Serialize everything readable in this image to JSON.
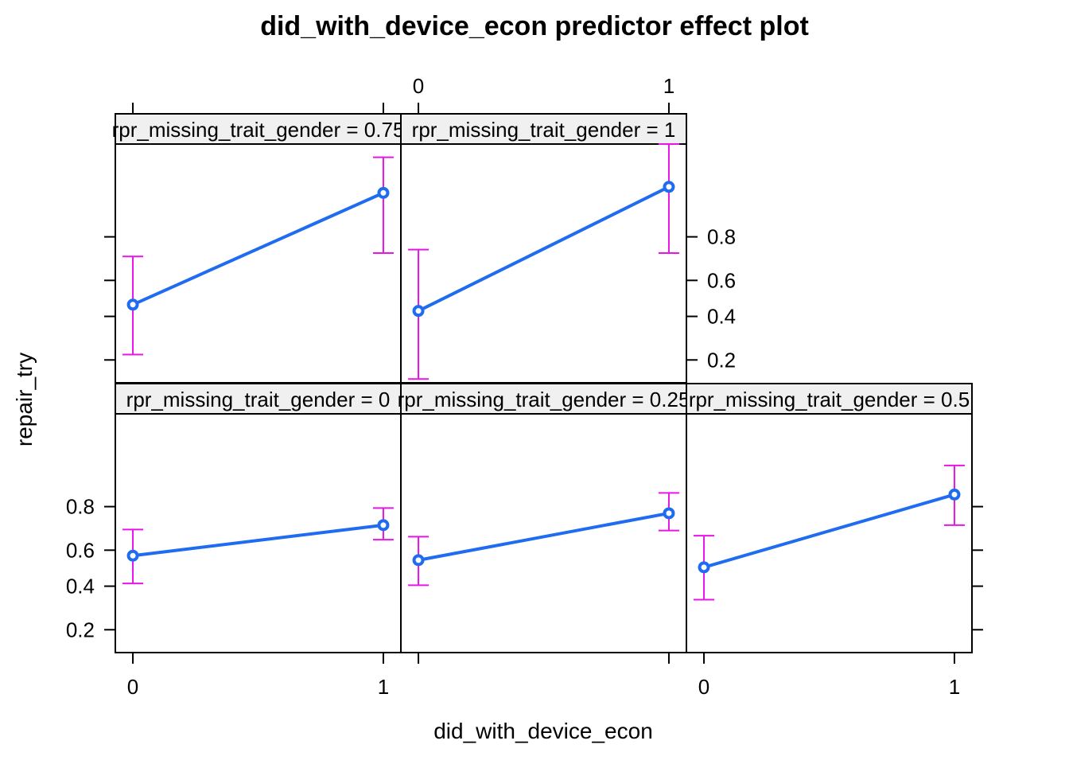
{
  "chart_data": {
    "type": "line",
    "title": "did_with_device_econ predictor effect plot",
    "xlabel": "did_with_device_econ",
    "ylabel": "repair_try",
    "x_ticks": [
      "0",
      "1"
    ],
    "y_ticks": [
      "0.2",
      "0.4",
      "0.6",
      "0.8"
    ],
    "y_tick_values": [
      0.2,
      0.4,
      0.6,
      0.8
    ],
    "xlim": [
      -0.07,
      1.07
    ],
    "ylim": [
      0.13,
      0.97
    ],
    "y_scale": "logit",
    "grid": false,
    "colors": {
      "line": "#1f6cf0",
      "ci": "#e815e8",
      "strip": "#f0f0f0"
    },
    "panels": [
      {
        "strip": "rpr_missing_trait_gender = 0",
        "row": 2,
        "col": 1,
        "x": [
          0,
          1
        ],
        "fit": [
          0.57,
          0.725
        ],
        "lower": [
          0.415,
          0.655
        ],
        "upper": [
          0.705,
          0.795
        ]
      },
      {
        "strip": "rpr_missing_trait_gender = 0.25",
        "row": 2,
        "col": 2,
        "x": [
          0,
          1
        ],
        "fit": [
          0.545,
          0.775
        ],
        "lower": [
          0.405,
          0.7
        ],
        "upper": [
          0.67,
          0.845
        ]
      },
      {
        "strip": "rpr_missing_trait_gender = 0.5",
        "row": 2,
        "col": 3,
        "x": [
          0,
          1
        ],
        "fit": [
          0.505,
          0.84
        ],
        "lower": [
          0.33,
          0.725
        ],
        "upper": [
          0.675,
          0.91
        ]
      },
      {
        "strip": "rpr_missing_trait_gender = 0.75",
        "row": 1,
        "col": 1,
        "x": [
          0,
          1
        ],
        "fit": [
          0.465,
          0.915
        ],
        "lower": [
          0.22,
          0.735
        ],
        "upper": [
          0.72,
          0.96
        ]
      },
      {
        "strip": "rpr_missing_trait_gender = 1",
        "row": 1,
        "col": 2,
        "x": [
          0,
          1
        ],
        "fit": [
          0.43,
          0.925
        ],
        "lower": [
          0.14,
          0.735
        ],
        "upper": [
          0.75,
          0.97
        ]
      }
    ]
  }
}
